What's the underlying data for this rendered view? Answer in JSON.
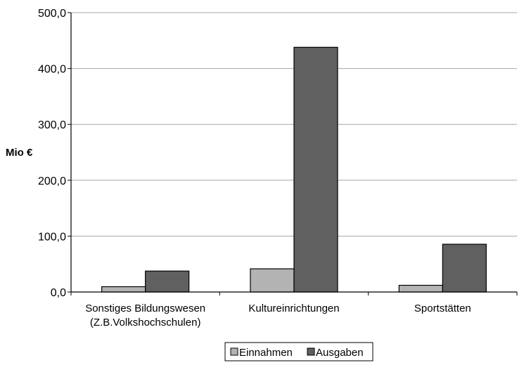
{
  "chart_data": {
    "type": "bar",
    "categories": [
      "Sonstiges Bildungswesen\n(Z.B.Volkshochschulen)",
      "Kultureinrichtungen",
      "Sportstätten"
    ],
    "series": [
      {
        "name": "Einnahmen",
        "values": [
          9.5,
          41.5,
          12.0
        ],
        "color": "#b3b3b3"
      },
      {
        "name": "Ausgaben",
        "values": [
          37.5,
          438.0,
          85.5
        ],
        "color": "#606060"
      }
    ],
    "ylabel": "Mio €",
    "ylim": [
      0,
      500
    ],
    "yticks": [
      "0,0",
      "100,0",
      "200,0",
      "300,0",
      "400,0",
      "500,0"
    ],
    "grid": true,
    "legend_position": "bottom"
  }
}
